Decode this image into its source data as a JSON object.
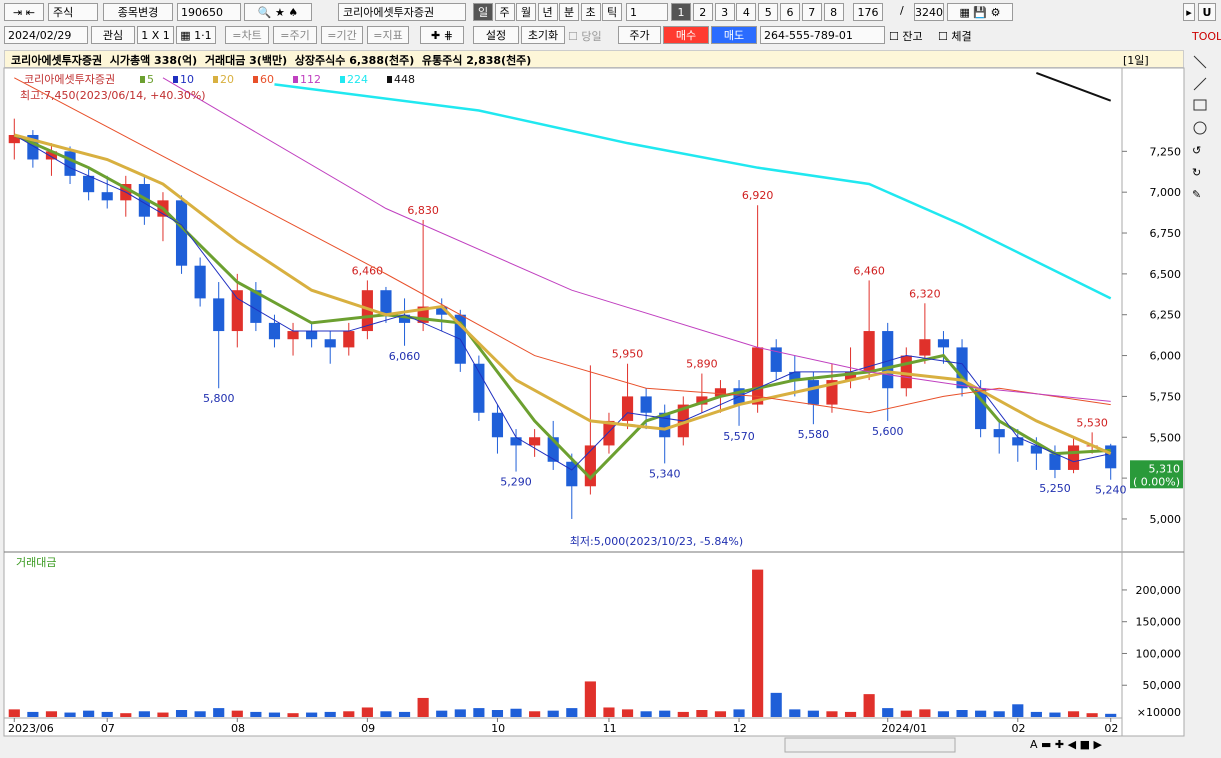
{
  "toolbar": {
    "market": "주식",
    "change": "종목변경",
    "code": "190650",
    "name": "코리아에셋투자증권",
    "periods": [
      "일",
      "주",
      "월",
      "년",
      "분",
      "초",
      "틱"
    ],
    "period_n": "1",
    "pages": [
      "1",
      "2",
      "3",
      "4",
      "5",
      "6",
      "7",
      "8"
    ],
    "count": "176",
    "sep": "/",
    "total": "3240",
    "u": "U"
  },
  "toolbar2": {
    "date": "2024/02/29",
    "fav": "관심",
    "layout": "1 X 1",
    "chart": "=차트",
    "cycle": "=주기",
    "range": "=기간",
    "indicator": "=지표",
    "settings": "설정",
    "reset": "초기화",
    "today": "당일",
    "price": "주가",
    "buy": "매수",
    "sell": "매도",
    "account": "264-555-789-01",
    "balance": "잔고",
    "filled": "체결"
  },
  "info": {
    "text": "코리아에셋투자증권  시가총액 338(억)  거래대금 3(백만)  상장주식수 6,388(천주)  유통주식 2,838(천주)",
    "period": "[1일]"
  },
  "chart_data": [
    {
      "type": "candlestick",
      "name": "코리아에셋투자증권",
      "up_color": "#e0312b",
      "down_color": "#1f5fd8",
      "categories": [
        "2023/06",
        null,
        null,
        null,
        null,
        "07",
        null,
        null,
        null,
        null,
        null,
        null,
        "08",
        null,
        null,
        null,
        null,
        null,
        null,
        "09",
        null,
        null,
        null,
        null,
        null,
        null,
        "10",
        null,
        null,
        null,
        null,
        null,
        "11",
        null,
        null,
        null,
        null,
        null,
        null,
        "12",
        null,
        null,
        null,
        null,
        null,
        null,
        null,
        "2024/01",
        null,
        null,
        null,
        null,
        null,
        null,
        "02",
        null,
        null,
        null,
        null,
        "02"
      ],
      "open": [
        7300,
        7350,
        7200,
        7250,
        7100,
        7000,
        6950,
        7050,
        6850,
        6950,
        6550,
        6350,
        6150,
        6400,
        6200,
        6100,
        6150,
        6100,
        6050,
        6150,
        6400,
        6250,
        6200,
        6300,
        6250,
        5950,
        5650,
        5500,
        5450,
        5500,
        5350,
        5200,
        5450,
        5600,
        5750,
        5650,
        5500,
        5700,
        5750,
        5800,
        5700,
        6050,
        5900,
        5850,
        5700,
        5850,
        5900,
        6150,
        5800,
        6000,
        6100,
        6050,
        5800,
        5550,
        5500,
        5450,
        5400,
        5300,
        5450,
        5450
      ],
      "high": [
        7450,
        7380,
        7300,
        7280,
        7150,
        7100,
        7100,
        7100,
        7000,
        6980,
        6600,
        6450,
        6500,
        6450,
        6250,
        6200,
        6200,
        6150,
        6200,
        6460,
        6420,
        6350,
        6830,
        6350,
        6280,
        6000,
        5700,
        5550,
        5550,
        5600,
        5400,
        5940,
        5650,
        5950,
        5800,
        5700,
        5750,
        5890,
        5850,
        5850,
        6920,
        6100,
        6000,
        5900,
        5950,
        6050,
        6460,
        6200,
        6050,
        6320,
        6150,
        6100,
        5850,
        5600,
        5550,
        5500,
        5450,
        5500,
        5530,
        5460
      ],
      "low": [
        7200,
        7150,
        7100,
        7050,
        6950,
        6900,
        6850,
        6800,
        6700,
        6500,
        6300,
        5800,
        6050,
        6150,
        6050,
        6000,
        6050,
        5950,
        6000,
        6100,
        6200,
        6060,
        6150,
        6150,
        5900,
        5600,
        5400,
        5290,
        5380,
        5300,
        5000,
        5150,
        5400,
        5550,
        5550,
        5340,
        5450,
        5650,
        5650,
        5570,
        5650,
        5850,
        5750,
        5580,
        5650,
        5800,
        5850,
        5600,
        5750,
        5950,
        5950,
        5750,
        5500,
        5400,
        5350,
        5300,
        5250,
        5280,
        5400,
        5240
      ],
      "close": [
        7350,
        7200,
        7250,
        7100,
        7000,
        6950,
        7050,
        6850,
        6950,
        6550,
        6350,
        6150,
        6400,
        6200,
        6100,
        6150,
        6100,
        6050,
        6150,
        6400,
        6250,
        6200,
        6300,
        6250,
        5950,
        5650,
        5500,
        5450,
        5500,
        5350,
        5200,
        5450,
        5600,
        5750,
        5650,
        5500,
        5700,
        5750,
        5800,
        5700,
        6050,
        5900,
        5850,
        5700,
        5850,
        5900,
        6150,
        5800,
        6000,
        6100,
        6050,
        5800,
        5550,
        5500,
        5450,
        5400,
        5300,
        5450,
        5450,
        5310
      ],
      "high_labels": [
        null,
        null,
        null,
        null,
        null,
        null,
        null,
        null,
        null,
        null,
        null,
        null,
        null,
        null,
        null,
        null,
        null,
        null,
        null,
        "6,460",
        null,
        null,
        "6,830",
        null,
        null,
        null,
        null,
        null,
        null,
        null,
        null,
        null,
        null,
        "5,950",
        null,
        null,
        null,
        "5,890",
        null,
        null,
        "6,920",
        null,
        null,
        null,
        null,
        null,
        "6,460",
        null,
        null,
        "6,320",
        null,
        null,
        null,
        null,
        null,
        null,
        null,
        null,
        "5,530",
        null
      ],
      "low_labels": [
        null,
        null,
        null,
        null,
        null,
        null,
        null,
        null,
        null,
        null,
        null,
        "5,800",
        null,
        null,
        null,
        null,
        null,
        null,
        null,
        null,
        null,
        "6,060",
        null,
        null,
        null,
        null,
        null,
        "5,290",
        null,
        null,
        null,
        null,
        null,
        null,
        null,
        "5,340",
        null,
        null,
        null,
        "5,570",
        null,
        null,
        null,
        "5,580",
        null,
        null,
        null,
        "5,600",
        null,
        null,
        null,
        null,
        null,
        null,
        null,
        null,
        "5,250",
        null,
        null,
        "5,240"
      ],
      "max_label": "최고:7,450(2023/06/14, +40.30%)",
      "min_label": "최저:5,000(2023/10/23, -5.84%)",
      "last_value_label": "5,310",
      "change_label": "( 0.00%)",
      "series": [
        {
          "name": "5",
          "color": "#6ca030",
          "width": 3,
          "x": [
            0,
            4,
            8,
            12,
            16,
            20,
            24,
            28,
            31,
            34,
            38,
            42,
            46,
            50,
            53,
            56,
            59
          ],
          "values": [
            7350,
            7150,
            6900,
            6450,
            6200,
            6250,
            6200,
            5600,
            5250,
            5600,
            5750,
            5850,
            5900,
            6000,
            5600,
            5400,
            5420
          ]
        },
        {
          "name": "10",
          "color": "#2030c0",
          "width": 1,
          "x": [
            0,
            3,
            6,
            9,
            12,
            15,
            18,
            21,
            24,
            27,
            30,
            33,
            36,
            39,
            42,
            45,
            48,
            51,
            54,
            57,
            59
          ],
          "values": [
            7350,
            7150,
            7000,
            6800,
            6350,
            6150,
            6150,
            6250,
            6100,
            5500,
            5300,
            5650,
            5600,
            5750,
            5900,
            5900,
            6000,
            5950,
            5500,
            5350,
            5400
          ]
        },
        {
          "name": "20",
          "color": "#d8b040",
          "width": 3,
          "x": [
            0,
            5,
            8,
            12,
            16,
            20,
            23,
            27,
            31,
            35,
            39,
            43,
            47,
            51,
            55,
            59
          ],
          "values": [
            7350,
            7200,
            7050,
            6700,
            6400,
            6250,
            6300,
            5850,
            5600,
            5550,
            5700,
            5800,
            5900,
            5850,
            5600,
            5400
          ]
        },
        {
          "name": "60",
          "color": "#e8502a",
          "width": 1,
          "x": [
            0,
            10,
            20,
            28,
            34,
            40,
            46,
            50,
            53,
            59
          ],
          "values": [
            7700,
            7100,
            6500,
            6000,
            5800,
            5750,
            5650,
            5750,
            5800,
            5700
          ]
        },
        {
          "name": "112",
          "color": "#c040c0",
          "width": 1,
          "x": [
            8,
            20,
            30,
            40,
            46,
            52,
            59
          ],
          "values": [
            7700,
            6900,
            6400,
            6050,
            5900,
            5800,
            5720
          ]
        },
        {
          "name": "224",
          "color": "#20e8f0",
          "width": 2.5,
          "x": [
            14,
            25,
            33,
            40,
            46,
            51,
            59
          ],
          "values": [
            7660,
            7500,
            7300,
            7150,
            7050,
            6800,
            6350
          ]
        },
        {
          "name": "448",
          "color": "#111111",
          "width": 2,
          "x": [
            55,
            59
          ],
          "values": [
            7730,
            7560
          ]
        }
      ],
      "ylim": [
        4810,
        7760
      ],
      "yticks": [
        {
          "value": 5000,
          "label": "5,000"
        },
        {
          "value": 5250,
          "label": "5,250"
        },
        {
          "value": 5500,
          "label": "5,500"
        },
        {
          "value": 5750,
          "label": "5,750"
        },
        {
          "value": 6000,
          "label": "6,000"
        },
        {
          "value": 6250,
          "label": "6,250"
        },
        {
          "value": 6500,
          "label": "6,500"
        },
        {
          "value": 6750,
          "label": "6,750"
        },
        {
          "value": 7000,
          "label": "7,000"
        },
        {
          "value": 7250,
          "label": "7,250"
        }
      ]
    },
    {
      "type": "bar",
      "title": "거래대금",
      "y_unit": "×10000",
      "values": [
        12000,
        8000,
        9000,
        7000,
        10000,
        8000,
        6000,
        9000,
        7000,
        11000,
        9000,
        14000,
        10000,
        8000,
        7000,
        6000,
        7000,
        8000,
        9000,
        15000,
        9000,
        8000,
        30000,
        10000,
        12000,
        14000,
        11000,
        13000,
        9000,
        10000,
        14000,
        56000,
        15000,
        12000,
        9000,
        10000,
        8000,
        11000,
        9000,
        12000,
        232000,
        38000,
        12000,
        10000,
        9000,
        8000,
        36000,
        14000,
        10000,
        12000,
        9000,
        11000,
        10000,
        9000,
        20000,
        8000,
        7000,
        9000,
        6000,
        5000
      ],
      "ylim": [
        0,
        255000
      ],
      "yticks": [
        {
          "value": 50000,
          "label": "50,000"
        },
        {
          "value": 100000,
          "label": "100,000"
        },
        {
          "value": 150000,
          "label": "150,000"
        },
        {
          "value": 200000,
          "label": "200,000"
        }
      ]
    }
  ]
}
